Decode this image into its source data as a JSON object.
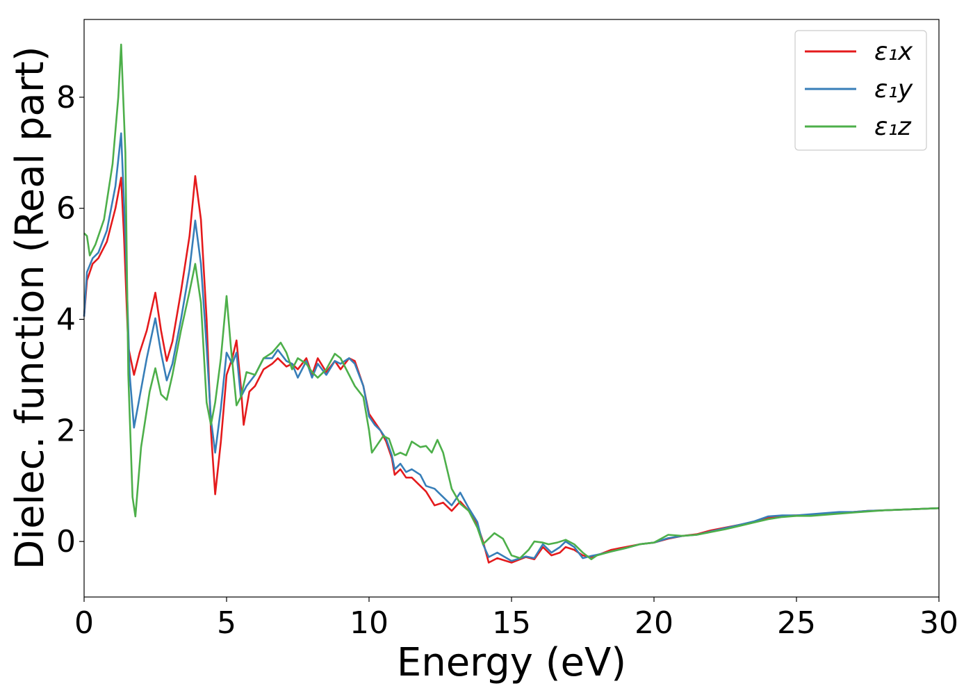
{
  "chart_data": {
    "type": "line",
    "title": "",
    "xlabel": "Energy (eV)",
    "ylabel": "Dielec. function (Real part)",
    "xlim": [
      0,
      30
    ],
    "ylim": [
      -1.0,
      9.4
    ],
    "xticks": [
      0,
      5,
      10,
      15,
      20,
      25,
      30
    ],
    "yticks": [
      0,
      2,
      4,
      6,
      8
    ],
    "grid": false,
    "legend_position": "top-right",
    "series": [
      {
        "name": "ε₁x",
        "color": "#e41a1c",
        "points": [
          [
            0,
            4.05
          ],
          [
            0.1,
            4.7
          ],
          [
            0.3,
            5.0
          ],
          [
            0.5,
            5.1
          ],
          [
            0.8,
            5.4
          ],
          [
            1.1,
            6.0
          ],
          [
            1.3,
            6.55
          ],
          [
            1.4,
            5.5
          ],
          [
            1.55,
            3.5
          ],
          [
            1.75,
            3.0
          ],
          [
            1.95,
            3.4
          ],
          [
            2.2,
            3.8
          ],
          [
            2.5,
            4.48
          ],
          [
            2.7,
            3.8
          ],
          [
            2.9,
            3.25
          ],
          [
            3.1,
            3.6
          ],
          [
            3.4,
            4.5
          ],
          [
            3.7,
            5.5
          ],
          [
            3.9,
            6.58
          ],
          [
            4.1,
            5.8
          ],
          [
            4.3,
            4.0
          ],
          [
            4.45,
            2.0
          ],
          [
            4.6,
            0.85
          ],
          [
            4.8,
            1.8
          ],
          [
            5.0,
            3.0
          ],
          [
            5.2,
            3.3
          ],
          [
            5.35,
            3.62
          ],
          [
            5.5,
            2.8
          ],
          [
            5.6,
            2.1
          ],
          [
            5.8,
            2.7
          ],
          [
            6.0,
            2.8
          ],
          [
            6.3,
            3.1
          ],
          [
            6.6,
            3.2
          ],
          [
            6.8,
            3.3
          ],
          [
            7.1,
            3.15
          ],
          [
            7.3,
            3.2
          ],
          [
            7.5,
            3.1
          ],
          [
            7.8,
            3.3
          ],
          [
            8.0,
            3.0
          ],
          [
            8.2,
            3.3
          ],
          [
            8.5,
            3.05
          ],
          [
            8.8,
            3.25
          ],
          [
            9.0,
            3.1
          ],
          [
            9.3,
            3.3
          ],
          [
            9.5,
            3.25
          ],
          [
            9.8,
            2.8
          ],
          [
            10.0,
            2.3
          ],
          [
            10.2,
            2.15
          ],
          [
            10.4,
            2.0
          ],
          [
            10.6,
            1.8
          ],
          [
            10.8,
            1.5
          ],
          [
            10.9,
            1.2
          ],
          [
            11.1,
            1.3
          ],
          [
            11.3,
            1.15
          ],
          [
            11.5,
            1.15
          ],
          [
            11.8,
            1.0
          ],
          [
            12.0,
            0.9
          ],
          [
            12.3,
            0.65
          ],
          [
            12.6,
            0.7
          ],
          [
            12.9,
            0.55
          ],
          [
            13.2,
            0.72
          ],
          [
            13.5,
            0.55
          ],
          [
            13.8,
            0.3
          ],
          [
            14.0,
            0.0
          ],
          [
            14.2,
            -0.38
          ],
          [
            14.5,
            -0.3
          ],
          [
            15.0,
            -0.38
          ],
          [
            15.5,
            -0.28
          ],
          [
            15.8,
            -0.32
          ],
          [
            16.1,
            -0.1
          ],
          [
            16.4,
            -0.25
          ],
          [
            16.7,
            -0.2
          ],
          [
            16.9,
            -0.1
          ],
          [
            17.2,
            -0.15
          ],
          [
            17.5,
            -0.25
          ],
          [
            17.8,
            -0.28
          ],
          [
            18.0,
            -0.25
          ],
          [
            18.5,
            -0.15
          ],
          [
            19.0,
            -0.1
          ],
          [
            19.5,
            -0.05
          ],
          [
            20.0,
            -0.02
          ],
          [
            20.5,
            0.05
          ],
          [
            21.0,
            0.1
          ],
          [
            21.5,
            0.13
          ],
          [
            22.0,
            0.2
          ],
          [
            22.5,
            0.25
          ],
          [
            23.0,
            0.3
          ],
          [
            23.5,
            0.35
          ],
          [
            24.0,
            0.43
          ],
          [
            24.5,
            0.46
          ],
          [
            25.0,
            0.47
          ],
          [
            25.5,
            0.48
          ],
          [
            26.0,
            0.5
          ],
          [
            26.5,
            0.52
          ],
          [
            27.0,
            0.53
          ],
          [
            27.5,
            0.55
          ],
          [
            28.0,
            0.56
          ],
          [
            29.0,
            0.58
          ],
          [
            30.0,
            0.6
          ]
        ]
      },
      {
        "name": "ε₁y",
        "color": "#377eb8",
        "points": [
          [
            0,
            4.05
          ],
          [
            0.1,
            4.85
          ],
          [
            0.3,
            5.1
          ],
          [
            0.5,
            5.2
          ],
          [
            0.8,
            5.6
          ],
          [
            1.1,
            6.4
          ],
          [
            1.3,
            7.35
          ],
          [
            1.45,
            5.5
          ],
          [
            1.6,
            3.0
          ],
          [
            1.75,
            2.05
          ],
          [
            1.95,
            2.6
          ],
          [
            2.2,
            3.3
          ],
          [
            2.5,
            4.02
          ],
          [
            2.7,
            3.4
          ],
          [
            2.9,
            2.9
          ],
          [
            3.1,
            3.2
          ],
          [
            3.4,
            4.0
          ],
          [
            3.7,
            4.9
          ],
          [
            3.9,
            5.78
          ],
          [
            4.1,
            5.0
          ],
          [
            4.3,
            3.5
          ],
          [
            4.45,
            2.2
          ],
          [
            4.6,
            1.6
          ],
          [
            4.8,
            2.4
          ],
          [
            5.0,
            3.4
          ],
          [
            5.2,
            3.2
          ],
          [
            5.35,
            3.4
          ],
          [
            5.5,
            2.6
          ],
          [
            5.7,
            2.8
          ],
          [
            6.0,
            3.0
          ],
          [
            6.3,
            3.3
          ],
          [
            6.6,
            3.3
          ],
          [
            6.8,
            3.45
          ],
          [
            7.1,
            3.25
          ],
          [
            7.3,
            3.2
          ],
          [
            7.5,
            2.95
          ],
          [
            7.8,
            3.25
          ],
          [
            8.0,
            2.95
          ],
          [
            8.2,
            3.2
          ],
          [
            8.5,
            3.0
          ],
          [
            8.8,
            3.25
          ],
          [
            9.0,
            3.2
          ],
          [
            9.3,
            3.3
          ],
          [
            9.5,
            3.2
          ],
          [
            9.8,
            2.8
          ],
          [
            10.0,
            2.25
          ],
          [
            10.2,
            2.1
          ],
          [
            10.4,
            2.0
          ],
          [
            10.6,
            1.85
          ],
          [
            10.8,
            1.55
          ],
          [
            10.9,
            1.3
          ],
          [
            11.1,
            1.4
          ],
          [
            11.3,
            1.25
          ],
          [
            11.5,
            1.3
          ],
          [
            11.8,
            1.2
          ],
          [
            12.0,
            1.0
          ],
          [
            12.3,
            0.95
          ],
          [
            12.6,
            0.8
          ],
          [
            12.9,
            0.65
          ],
          [
            13.2,
            0.88
          ],
          [
            13.5,
            0.6
          ],
          [
            13.8,
            0.35
          ],
          [
            14.0,
            -0.05
          ],
          [
            14.2,
            -0.28
          ],
          [
            14.5,
            -0.2
          ],
          [
            15.0,
            -0.35
          ],
          [
            15.5,
            -0.27
          ],
          [
            15.8,
            -0.3
          ],
          [
            16.1,
            -0.05
          ],
          [
            16.4,
            -0.2
          ],
          [
            16.7,
            -0.1
          ],
          [
            16.9,
            0.0
          ],
          [
            17.2,
            -0.1
          ],
          [
            17.5,
            -0.3
          ],
          [
            17.8,
            -0.26
          ],
          [
            18.0,
            -0.24
          ],
          [
            18.5,
            -0.18
          ],
          [
            19.0,
            -0.12
          ],
          [
            19.5,
            -0.05
          ],
          [
            20.0,
            -0.02
          ],
          [
            20.5,
            0.06
          ],
          [
            21.0,
            0.1
          ],
          [
            21.5,
            0.12
          ],
          [
            22.0,
            0.18
          ],
          [
            22.5,
            0.24
          ],
          [
            23.0,
            0.3
          ],
          [
            23.5,
            0.36
          ],
          [
            24.0,
            0.45
          ],
          [
            24.5,
            0.47
          ],
          [
            25.0,
            0.47
          ],
          [
            25.5,
            0.49
          ],
          [
            26.0,
            0.51
          ],
          [
            26.5,
            0.53
          ],
          [
            27.0,
            0.53
          ],
          [
            27.5,
            0.55
          ],
          [
            28.0,
            0.56
          ],
          [
            29.0,
            0.58
          ],
          [
            30.0,
            0.6
          ]
        ]
      },
      {
        "name": "ε₁z",
        "color": "#4daf4a",
        "points": [
          [
            0,
            5.55
          ],
          [
            0.1,
            5.5
          ],
          [
            0.2,
            5.15
          ],
          [
            0.4,
            5.35
          ],
          [
            0.7,
            5.8
          ],
          [
            1.0,
            6.8
          ],
          [
            1.2,
            8.0
          ],
          [
            1.3,
            8.95
          ],
          [
            1.45,
            7.0
          ],
          [
            1.55,
            3.0
          ],
          [
            1.7,
            0.8
          ],
          [
            1.8,
            0.45
          ],
          [
            2.0,
            1.7
          ],
          [
            2.3,
            2.7
          ],
          [
            2.5,
            3.12
          ],
          [
            2.7,
            2.65
          ],
          [
            2.9,
            2.55
          ],
          [
            3.1,
            3.0
          ],
          [
            3.4,
            3.8
          ],
          [
            3.7,
            4.5
          ],
          [
            3.9,
            5.0
          ],
          [
            4.1,
            4.3
          ],
          [
            4.3,
            2.5
          ],
          [
            4.45,
            2.1
          ],
          [
            4.6,
            2.5
          ],
          [
            4.8,
            3.3
          ],
          [
            5.0,
            4.42
          ],
          [
            5.15,
            3.5
          ],
          [
            5.35,
            2.45
          ],
          [
            5.5,
            2.6
          ],
          [
            5.7,
            3.05
          ],
          [
            6.0,
            3.0
          ],
          [
            6.3,
            3.3
          ],
          [
            6.6,
            3.4
          ],
          [
            6.9,
            3.58
          ],
          [
            7.1,
            3.4
          ],
          [
            7.3,
            3.1
          ],
          [
            7.5,
            3.3
          ],
          [
            7.8,
            3.2
          ],
          [
            8.0,
            3.05
          ],
          [
            8.2,
            2.95
          ],
          [
            8.5,
            3.1
          ],
          [
            8.8,
            3.38
          ],
          [
            9.0,
            3.3
          ],
          [
            9.3,
            3.0
          ],
          [
            9.5,
            2.8
          ],
          [
            9.8,
            2.6
          ],
          [
            10.0,
            2.0
          ],
          [
            10.1,
            1.6
          ],
          [
            10.3,
            1.75
          ],
          [
            10.5,
            1.9
          ],
          [
            10.7,
            1.85
          ],
          [
            10.9,
            1.55
          ],
          [
            11.1,
            1.6
          ],
          [
            11.3,
            1.55
          ],
          [
            11.5,
            1.8
          ],
          [
            11.8,
            1.7
          ],
          [
            12.0,
            1.72
          ],
          [
            12.2,
            1.6
          ],
          [
            12.4,
            1.83
          ],
          [
            12.6,
            1.6
          ],
          [
            12.9,
            0.95
          ],
          [
            13.2,
            0.68
          ],
          [
            13.5,
            0.55
          ],
          [
            13.8,
            0.25
          ],
          [
            14.0,
            -0.05
          ],
          [
            14.2,
            0.05
          ],
          [
            14.4,
            0.15
          ],
          [
            14.7,
            0.05
          ],
          [
            15.0,
            -0.25
          ],
          [
            15.3,
            -0.3
          ],
          [
            15.6,
            -0.15
          ],
          [
            15.8,
            0.0
          ],
          [
            16.1,
            -0.02
          ],
          [
            16.3,
            -0.05
          ],
          [
            16.6,
            -0.02
          ],
          [
            16.9,
            0.03
          ],
          [
            17.2,
            -0.05
          ],
          [
            17.5,
            -0.2
          ],
          [
            17.8,
            -0.32
          ],
          [
            18.0,
            -0.25
          ],
          [
            18.5,
            -0.18
          ],
          [
            19.0,
            -0.12
          ],
          [
            19.5,
            -0.05
          ],
          [
            20.0,
            -0.02
          ],
          [
            20.5,
            0.12
          ],
          [
            21.0,
            0.1
          ],
          [
            21.5,
            0.12
          ],
          [
            22.0,
            0.17
          ],
          [
            22.5,
            0.22
          ],
          [
            23.0,
            0.28
          ],
          [
            23.5,
            0.34
          ],
          [
            24.0,
            0.4
          ],
          [
            24.5,
            0.44
          ],
          [
            25.0,
            0.46
          ],
          [
            25.5,
            0.46
          ],
          [
            26.0,
            0.48
          ],
          [
            26.5,
            0.5
          ],
          [
            27.0,
            0.52
          ],
          [
            27.5,
            0.54
          ],
          [
            28.0,
            0.56
          ],
          [
            29.0,
            0.58
          ],
          [
            30.0,
            0.6
          ]
        ]
      }
    ]
  }
}
